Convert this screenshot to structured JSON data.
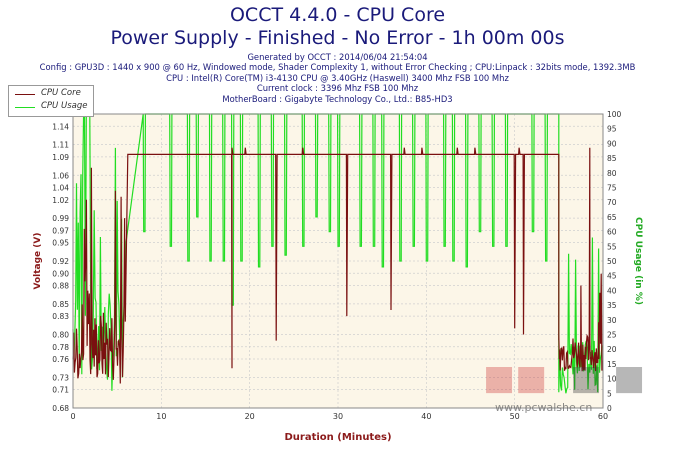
{
  "title": "OCCT 4.4.0 - CPU Core",
  "subtitle": "Power Supply - Finished - No Error - 1h 00m 00s",
  "info_lines": [
    "Generated by OCCT : 2014/06/04 21:54:04",
    "Config : GPU3D : 1440 x 900 @ 60 Hz, Windowed mode, Shader Complexity 1, without Error Checking ; CPU:Linpack : 32bits mode, 1392.3MB",
    "CPU : Intel(R) Core(TM) i3-4130 CPU @ 3.40GHz (Haswell) 3400 Mhz FSB 100 Mhz",
    "Current clock : 3396 Mhz FSB 100 Mhz",
    "MotherBoard : Gigabyte Technology Co., Ltd.: B85-HD3"
  ],
  "legend": [
    "CPU Core",
    "CPU Usage"
  ],
  "watermark": "www.pcwalshe.cn",
  "colors": {
    "title": "#1a1a7a",
    "cpu_core": "#7a1010",
    "cpu_usage": "#22dd22",
    "plot_bg": "#fcf6e8",
    "grid": "#cfcfcf",
    "xlabel": "#8b1a1a",
    "ylabel_left": "#8b1a1a",
    "ylabel_right": "#22aa22"
  },
  "chart_data": {
    "type": "line",
    "xlabel": "Duration (Minutes)",
    "ylabel": "Voltage (V)",
    "ylabel_right": "CPU Usage (in %)",
    "xlim": [
      0,
      60
    ],
    "ylim": [
      0.68,
      1.16
    ],
    "ylim_right": [
      0,
      100
    ],
    "x_ticks": [
      0,
      10,
      20,
      30,
      40,
      50,
      60
    ],
    "y_ticks": [
      0.68,
      0.71,
      0.73,
      0.76,
      0.78,
      0.8,
      0.83,
      0.85,
      0.88,
      0.9,
      0.92,
      0.95,
      0.97,
      0.99,
      1.02,
      1.04,
      1.06,
      1.09,
      1.11,
      1.14,
      1.16
    ],
    "y_ticks_right": [
      0,
      5,
      10,
      15,
      20,
      25,
      30,
      35,
      40,
      45,
      50,
      55,
      60,
      65,
      70,
      75,
      80,
      85,
      90,
      95,
      100
    ],
    "grid": true,
    "legend_position": "top-left",
    "series": [
      {
        "name": "CPU Core",
        "axis": "left",
        "baseline": 1.094,
        "spikes_up": [
          [
            18,
            1.105
          ],
          [
            19.5,
            1.105
          ],
          [
            26,
            1.105
          ],
          [
            37.5,
            1.105
          ],
          [
            39.5,
            1.105
          ],
          [
            43.5,
            1.105
          ],
          [
            45.5,
            1.105
          ],
          [
            50.5,
            1.105
          ],
          [
            58.5,
            1.105
          ]
        ],
        "dips": [
          [
            18,
            0.745
          ],
          [
            23,
            0.79
          ],
          [
            31,
            0.83
          ],
          [
            36,
            0.84
          ],
          [
            50,
            0.81
          ],
          [
            51,
            0.8
          ],
          [
            55,
            0.8
          ],
          [
            57.5,
            0.88
          ],
          [
            58,
            0.78
          ],
          [
            59.5,
            0.82
          ]
        ],
        "noisy_start": [
          0,
          6
        ],
        "noisy_end": [
          55,
          60
        ]
      },
      {
        "name": "CPU Usage",
        "axis": "right",
        "high": 100,
        "dips": [
          [
            8,
            60
          ],
          [
            11,
            55
          ],
          [
            13,
            50
          ],
          [
            14,
            65
          ],
          [
            15.5,
            50
          ],
          [
            17,
            50
          ],
          [
            18,
            35
          ],
          [
            19,
            50
          ],
          [
            21,
            48
          ],
          [
            22.5,
            55
          ],
          [
            24,
            52
          ],
          [
            26,
            55
          ],
          [
            27.5,
            65
          ],
          [
            29,
            60
          ],
          [
            30,
            55
          ],
          [
            32.5,
            55
          ],
          [
            34,
            55
          ],
          [
            35,
            48
          ],
          [
            37,
            50
          ],
          [
            38.5,
            55
          ],
          [
            40,
            50
          ],
          [
            42,
            55
          ],
          [
            43,
            50
          ],
          [
            44.5,
            48
          ],
          [
            46,
            60
          ],
          [
            47.5,
            55
          ],
          [
            49,
            55
          ],
          [
            52,
            60
          ],
          [
            53.5,
            50
          ]
        ],
        "noisy_start": [
          0,
          6
        ],
        "noisy_end": [
          55,
          60
        ]
      }
    ]
  }
}
